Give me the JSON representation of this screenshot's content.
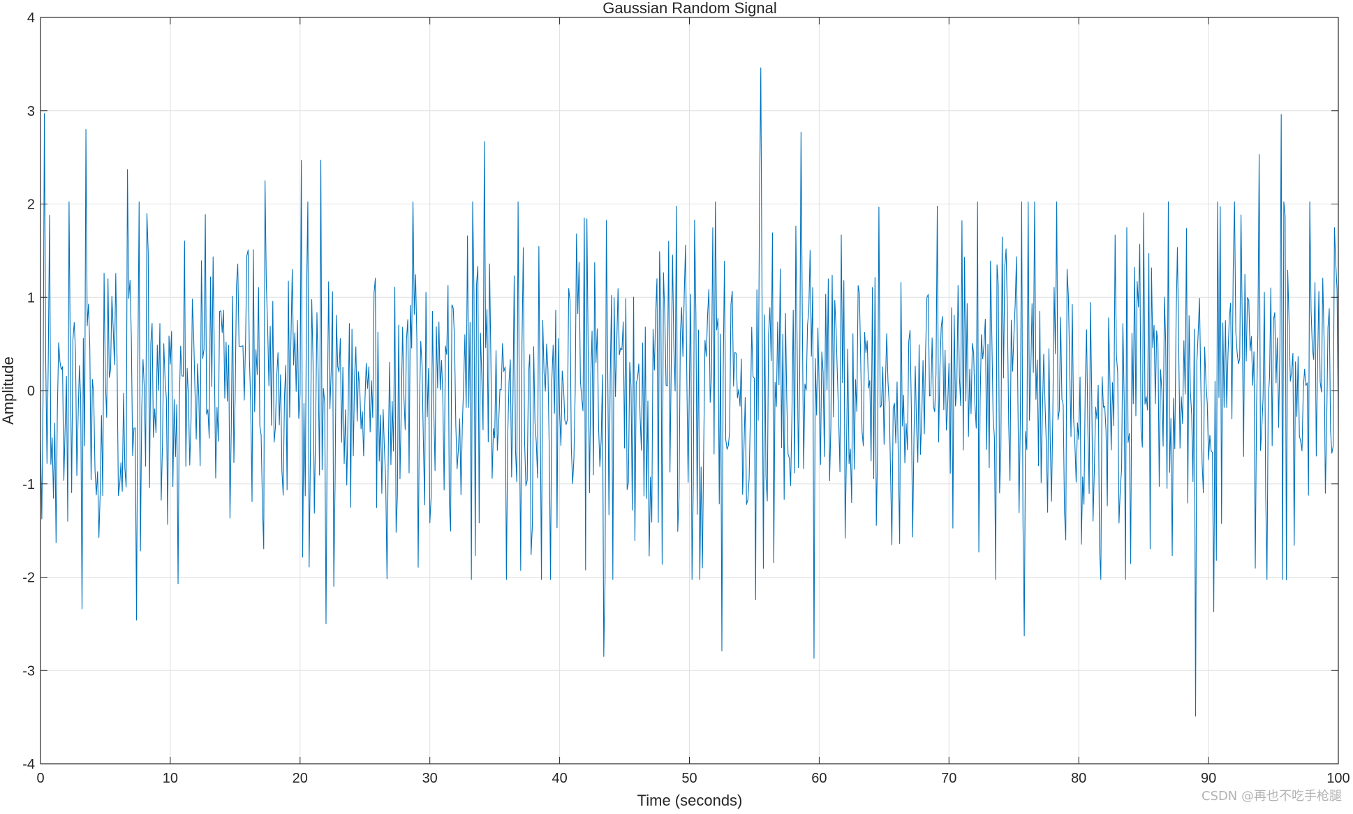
{
  "chart_data": {
    "type": "line",
    "title": "Gaussian Random Signal",
    "xlabel": "Time (seconds)",
    "ylabel": "Amplitude",
    "xlim": [
      0,
      100
    ],
    "ylim": [
      -4,
      4
    ],
    "xticks": [
      0,
      10,
      20,
      30,
      40,
      50,
      60,
      70,
      80,
      90,
      100
    ],
    "yticks": [
      -4,
      -3,
      -2,
      -1,
      0,
      1,
      2,
      3,
      4
    ],
    "grid": true,
    "line_color": "#0072BD",
    "x_step": 0.1,
    "peaks": [
      {
        "x": 0.3,
        "y": 2.97
      },
      {
        "x": 0.5,
        "y": -0.78
      },
      {
        "x": 1.2,
        "y": 2.02
      },
      {
        "x": 1.2,
        "y": -1.63
      },
      {
        "x": 3.2,
        "y": -2.34
      },
      {
        "x": 3.5,
        "y": 2.8
      },
      {
        "x": 6.7,
        "y": 2.37
      },
      {
        "x": 7.4,
        "y": -2.46
      },
      {
        "x": 10.6,
        "y": -2.07
      },
      {
        "x": 17.3,
        "y": 2.25
      },
      {
        "x": 20.1,
        "y": 2.47
      },
      {
        "x": 21.6,
        "y": 2.47
      },
      {
        "x": 22.0,
        "y": -2.5
      },
      {
        "x": 22.6,
        "y": -2.1
      },
      {
        "x": 34.2,
        "y": 2.67
      },
      {
        "x": 43.4,
        "y": -2.85
      },
      {
        "x": 52.5,
        "y": -2.79
      },
      {
        "x": 55.1,
        "y": -2.24
      },
      {
        "x": 55.5,
        "y": 3.46
      },
      {
        "x": 58.6,
        "y": 2.77
      },
      {
        "x": 59.6,
        "y": -2.87
      },
      {
        "x": 75.8,
        "y": -2.63
      },
      {
        "x": 89.0,
        "y": -3.49
      },
      {
        "x": 90.4,
        "y": -2.37
      },
      {
        "x": 93.9,
        "y": 2.53
      },
      {
        "x": 95.6,
        "y": 2.96
      },
      {
        "x": 96.0,
        "y": -2.03
      }
    ]
  },
  "watermark": "CSDN @再也不吃手枪腿"
}
